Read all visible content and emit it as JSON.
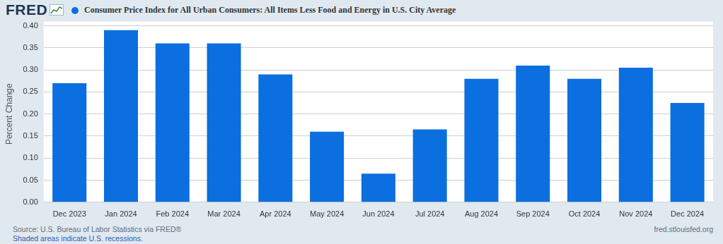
{
  "chart_data": {
    "type": "bar",
    "title": "Consumer Price Index for All Urban Consumers: All Items Less Food and Energy in U.S. City Average",
    "y_label": "Percent Change",
    "categories": [
      "Dec 2023",
      "Jan 2024",
      "Feb 2024",
      "Mar 2024",
      "Apr 2024",
      "May 2024",
      "Jun 2024",
      "Jul 2024",
      "Aug 2024",
      "Sep 2024",
      "Oct 2024",
      "Nov 2024",
      "Dec 2024"
    ],
    "values": [
      0.27,
      0.39,
      0.36,
      0.36,
      0.29,
      0.16,
      0.065,
      0.165,
      0.28,
      0.31,
      0.28,
      0.305,
      0.225
    ],
    "color": "#0b6fdf",
    "ylim": [
      0,
      0.4
    ],
    "yticks": [
      {
        "value": 0,
        "label": "0.00"
      },
      0.05,
      {
        "value": 0.1,
        "label": "0.10"
      },
      0.15,
      {
        "value": 0.2,
        "label": "0.20"
      },
      0.25,
      {
        "value": 0.3,
        "label": "0.30"
      },
      0.35,
      {
        "value": 0.4,
        "label": "0.40"
      }
    ],
    "grid": true,
    "logo": "FRED",
    "source": "Source: U.S. Bureau of Labor Statistics via FRED®",
    "note": "Shaded areas indicate U.S. recessions.",
    "url": "fred.stlouisfed.org"
  }
}
